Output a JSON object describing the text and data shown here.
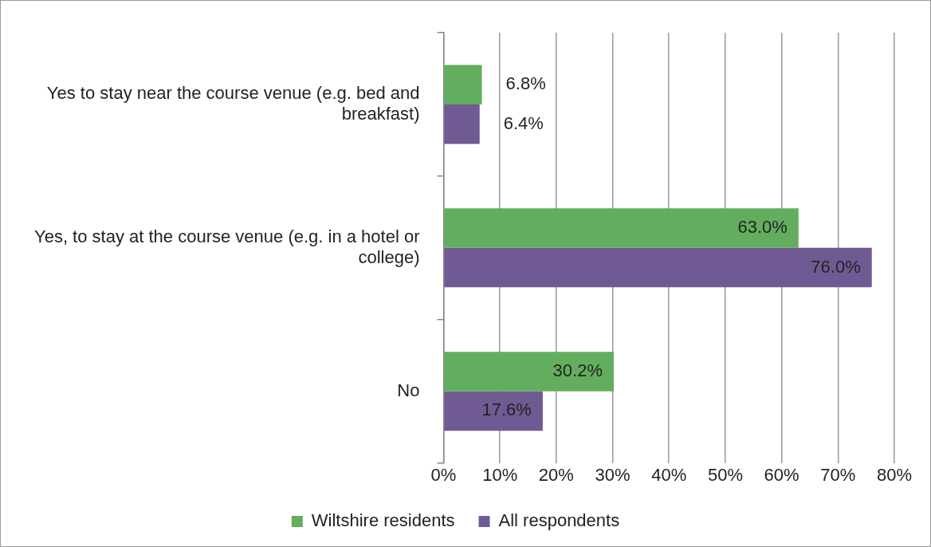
{
  "chart_data": {
    "type": "bar",
    "orientation": "horizontal",
    "categories": [
      "Yes to stay near the course venue (e.g. bed and breakfast)",
      "Yes, to stay at the course venue (e.g. in a hotel or college)",
      "No"
    ],
    "series": [
      {
        "name": "Wiltshire residents",
        "color": "#63ad5f",
        "values": [
          6.8,
          63.0,
          30.2
        ],
        "value_labels": [
          "6.8%",
          "63.0%",
          "30.2%"
        ]
      },
      {
        "name": "All respondents",
        "color": "#705a93",
        "values": [
          6.4,
          76.0,
          17.6
        ],
        "value_labels": [
          "6.4%",
          "76.0%",
          "17.6%"
        ]
      }
    ],
    "xlim": [
      0,
      80
    ],
    "xticks": [
      {
        "value": 0,
        "label": "0%"
      },
      {
        "value": 10,
        "label": "10%"
      },
      {
        "value": 20,
        "label": "20%"
      },
      {
        "value": 30,
        "label": "30%"
      },
      {
        "value": 40,
        "label": "40%"
      },
      {
        "value": 50,
        "label": "50%"
      },
      {
        "value": 60,
        "label": "60%"
      },
      {
        "value": 70,
        "label": "70%"
      },
      {
        "value": 80,
        "label": "80%"
      }
    ],
    "grid": "x",
    "legend": "bottom"
  }
}
